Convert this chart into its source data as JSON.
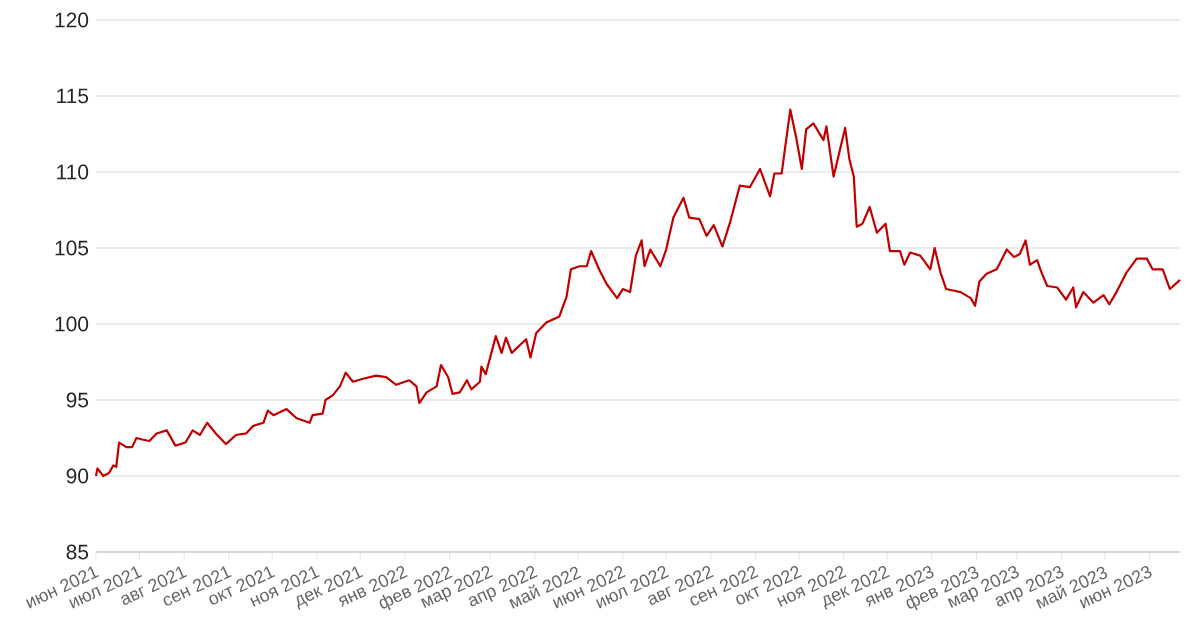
{
  "chart_data": {
    "type": "line",
    "color": "#c00000",
    "grid": "y",
    "marker": "none",
    "line_style": "solid",
    "xlim": [
      "2021-06-01",
      "2023-06-22"
    ],
    "ylim": [
      85,
      120
    ],
    "yticks": [
      85,
      90,
      95,
      100,
      105,
      110,
      115,
      120
    ],
    "xticks": [
      {
        "value": "2021-06-01",
        "label": "июн 2021"
      },
      {
        "value": "2021-07-01",
        "label": "июл 2021"
      },
      {
        "value": "2021-08-01",
        "label": "авг 2021"
      },
      {
        "value": "2021-09-01",
        "label": "сен 2021"
      },
      {
        "value": "2021-10-01",
        "label": "окт 2021"
      },
      {
        "value": "2021-11-01",
        "label": "ноя 2021"
      },
      {
        "value": "2021-12-01",
        "label": "дек 2021"
      },
      {
        "value": "2022-01-01",
        "label": "янв 2022"
      },
      {
        "value": "2022-02-01",
        "label": "фев 2022"
      },
      {
        "value": "2022-03-01",
        "label": "мар 2022"
      },
      {
        "value": "2022-04-01",
        "label": "апр 2022"
      },
      {
        "value": "2022-05-01",
        "label": "май 2022"
      },
      {
        "value": "2022-06-01",
        "label": "июн 2022"
      },
      {
        "value": "2022-07-01",
        "label": "июл 2022"
      },
      {
        "value": "2022-08-01",
        "label": "авг 2022"
      },
      {
        "value": "2022-09-01",
        "label": "сен 2022"
      },
      {
        "value": "2022-10-01",
        "label": "окт 2022"
      },
      {
        "value": "2022-11-01",
        "label": "ноя 2022"
      },
      {
        "value": "2022-12-01",
        "label": "дек 2022"
      },
      {
        "value": "2023-01-01",
        "label": "янв 2023"
      },
      {
        "value": "2023-02-01",
        "label": "фев 2023"
      },
      {
        "value": "2023-03-01",
        "label": "мар 2023"
      },
      {
        "value": "2023-04-01",
        "label": "апр 2023"
      },
      {
        "value": "2023-05-01",
        "label": "май 2023"
      },
      {
        "value": "2023-06-01",
        "label": "июн 2023"
      }
    ],
    "x": [
      "2021-06-01",
      "2021-06-02",
      "2021-06-06",
      "2021-06-10",
      "2021-06-13",
      "2021-06-15",
      "2021-06-17",
      "2021-06-22",
      "2021-06-26",
      "2021-06-29",
      "2021-07-03",
      "2021-07-08",
      "2021-07-13",
      "2021-07-20",
      "2021-07-26",
      "2021-08-02",
      "2021-08-07",
      "2021-08-12",
      "2021-08-17",
      "2021-08-23",
      "2021-08-30",
      "2021-09-06",
      "2021-09-13",
      "2021-09-18",
      "2021-09-25",
      "2021-09-28",
      "2021-10-02",
      "2021-10-11",
      "2021-10-18",
      "2021-10-27",
      "2021-10-29",
      "2021-11-05",
      "2021-11-07",
      "2021-11-12",
      "2021-11-17",
      "2021-11-21",
      "2021-11-26",
      "2021-12-03",
      "2021-12-12",
      "2021-12-19",
      "2021-12-26",
      "2022-01-04",
      "2022-01-09",
      "2022-01-11",
      "2022-01-16",
      "2022-01-23",
      "2022-01-26",
      "2022-01-31",
      "2022-02-03",
      "2022-02-08",
      "2022-02-13",
      "2022-02-16",
      "2022-02-22",
      "2022-02-23",
      "2022-02-26",
      "2022-03-05",
      "2022-03-09",
      "2022-03-12",
      "2022-03-16",
      "2022-03-26",
      "2022-03-29",
      "2022-04-02",
      "2022-04-09",
      "2022-04-18",
      "2022-04-23",
      "2022-04-26",
      "2022-05-02",
      "2022-05-07",
      "2022-05-10",
      "2022-05-16",
      "2022-05-21",
      "2022-05-28",
      "2022-06-01",
      "2022-06-06",
      "2022-06-10",
      "2022-06-14",
      "2022-06-16",
      "2022-06-20",
      "2022-06-27",
      "2022-07-01",
      "2022-07-06",
      "2022-07-13",
      "2022-07-17",
      "2022-07-24",
      "2022-07-29",
      "2022-08-03",
      "2022-08-09",
      "2022-08-14",
      "2022-08-21",
      "2022-08-28",
      "2022-09-04",
      "2022-09-11",
      "2022-09-14",
      "2022-09-19",
      "2022-09-25",
      "2022-09-29",
      "2022-10-03",
      "2022-10-06",
      "2022-10-11",
      "2022-10-18",
      "2022-10-20",
      "2022-10-25",
      "2022-10-29",
      "2022-11-02",
      "2022-11-05",
      "2022-11-08",
      "2022-11-10",
      "2022-11-14",
      "2022-11-19",
      "2022-11-24",
      "2022-11-30",
      "2022-12-03",
      "2022-12-10",
      "2022-12-13",
      "2022-12-17",
      "2022-12-24",
      "2022-12-31",
      "2023-01-03",
      "2023-01-07",
      "2023-01-11",
      "2023-01-21",
      "2023-01-28",
      "2023-01-31",
      "2023-02-03",
      "2023-02-08",
      "2023-02-15",
      "2023-02-22",
      "2023-02-27",
      "2023-03-03",
      "2023-03-07",
      "2023-03-10",
      "2023-03-15",
      "2023-03-18",
      "2023-03-22",
      "2023-03-29",
      "2023-04-04",
      "2023-04-09",
      "2023-04-11",
      "2023-04-16",
      "2023-04-23",
      "2023-04-30",
      "2023-05-04",
      "2023-05-09",
      "2023-05-16",
      "2023-05-23",
      "2023-05-30",
      "2023-06-03",
      "2023-06-10",
      "2023-06-15",
      "2023-06-22"
    ],
    "values": [
      90.0,
      90.5,
      90.0,
      90.2,
      90.7,
      90.6,
      92.2,
      91.9,
      91.9,
      92.5,
      92.4,
      92.3,
      92.8,
      93.0,
      92.0,
      92.2,
      93.0,
      92.7,
      93.5,
      92.8,
      92.1,
      92.7,
      92.8,
      93.3,
      93.5,
      94.3,
      94.0,
      94.4,
      93.8,
      93.5,
      94.0,
      94.1,
      95.0,
      95.3,
      95.9,
      96.8,
      96.2,
      96.4,
      96.6,
      96.5,
      96.0,
      96.3,
      95.9,
      94.8,
      95.5,
      95.9,
      97.3,
      96.5,
      95.4,
      95.5,
      96.3,
      95.7,
      96.2,
      97.2,
      96.7,
      99.2,
      98.1,
      99.1,
      98.1,
      99.0,
      97.8,
      99.4,
      100.1,
      100.5,
      101.8,
      103.6,
      103.8,
      103.8,
      104.8,
      103.5,
      102.6,
      101.7,
      102.3,
      102.1,
      104.5,
      105.5,
      103.8,
      104.9,
      103.8,
      104.9,
      107.0,
      108.3,
      107.0,
      106.9,
      105.8,
      106.5,
      105.1,
      106.6,
      109.1,
      109.0,
      110.2,
      108.4,
      109.9,
      109.9,
      114.1,
      112.3,
      110.2,
      112.8,
      113.2,
      112.1,
      113.0,
      109.7,
      111.3,
      112.9,
      110.8,
      109.7,
      106.4,
      106.6,
      107.7,
      106.0,
      106.6,
      104.8,
      104.8,
      103.9,
      104.7,
      104.5,
      103.6,
      105.0,
      103.4,
      102.3,
      102.1,
      101.7,
      101.2,
      102.8,
      103.3,
      103.6,
      104.9,
      104.4,
      104.6,
      105.5,
      103.9,
      104.2,
      103.4,
      102.5,
      102.4,
      101.6,
      102.4,
      101.1,
      102.1,
      101.4,
      101.9,
      101.3,
      102.1,
      103.4,
      104.3,
      104.3,
      103.6,
      103.6,
      102.3,
      102.9
    ]
  }
}
